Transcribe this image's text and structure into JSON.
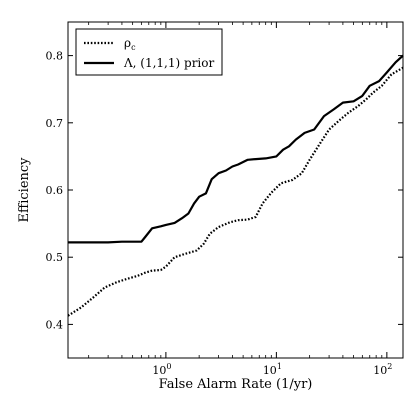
{
  "chart_data": {
    "type": "line",
    "title": "",
    "xlabel": "False Alarm Rate (1/yr)",
    "ylabel": "Efficiency",
    "xscale": "log",
    "xlim": [
      0.13,
      140
    ],
    "ylim": [
      0.35,
      0.85
    ],
    "xticks": [
      {
        "value": 1,
        "label": "10",
        "exp": "0"
      },
      {
        "value": 10,
        "label": "10",
        "exp": "1"
      },
      {
        "value": 100,
        "label": "10",
        "exp": "2"
      }
    ],
    "yticks": [
      {
        "value": 0.4,
        "label": "0.4"
      },
      {
        "value": 0.5,
        "label": "0.5"
      },
      {
        "value": 0.6,
        "label": "0.6"
      },
      {
        "value": 0.7,
        "label": "0.7"
      },
      {
        "value": 0.8,
        "label": "0.8"
      }
    ],
    "grid": false,
    "legend_position": "top-left",
    "series": [
      {
        "name": "ρ_c",
        "label_base": "ρ",
        "label_sub": "c",
        "style": "dotted",
        "color": "#000000",
        "x": [
          0.13,
          0.17,
          0.22,
          0.28,
          0.36,
          0.45,
          0.55,
          0.65,
          0.75,
          0.9,
          1.0,
          1.2,
          1.5,
          1.9,
          2.2,
          2.5,
          3.0,
          3.8,
          4.5,
          5.5,
          6.5,
          7.5,
          9.0,
          11.0,
          14.0,
          17.0,
          20.0,
          25.0,
          30.0,
          38.0,
          45.0,
          55.0,
          65.0,
          75.0,
          90.0,
          110.0,
          140.0
        ],
        "y": [
          0.413,
          0.425,
          0.44,
          0.455,
          0.463,
          0.468,
          0.472,
          0.477,
          0.48,
          0.481,
          0.486,
          0.5,
          0.505,
          0.51,
          0.52,
          0.535,
          0.545,
          0.552,
          0.555,
          0.556,
          0.56,
          0.58,
          0.596,
          0.61,
          0.615,
          0.625,
          0.645,
          0.67,
          0.69,
          0.705,
          0.715,
          0.725,
          0.735,
          0.745,
          0.755,
          0.772,
          0.782
        ]
      },
      {
        "name": "Λ, (1,1,1) prior",
        "label_base": "Λ, (1,1,1) prior",
        "label_sub": "",
        "style": "solid",
        "color": "#000000",
        "x": [
          0.13,
          0.2,
          0.3,
          0.4,
          0.5,
          0.6,
          0.65,
          0.75,
          0.9,
          1.0,
          1.2,
          1.4,
          1.6,
          1.8,
          2.0,
          2.3,
          2.6,
          3.0,
          3.5,
          4.0,
          4.5,
          5.5,
          6.5,
          8.0,
          10.0,
          11.5,
          13.0,
          15.0,
          18.0,
          22.0,
          27.0,
          33.0,
          40.0,
          50.0,
          60.0,
          70.0,
          85.0,
          100.0,
          120.0,
          140.0
        ],
        "y": [
          0.522,
          0.522,
          0.522,
          0.523,
          0.523,
          0.523,
          0.53,
          0.543,
          0.546,
          0.548,
          0.551,
          0.558,
          0.565,
          0.58,
          0.59,
          0.595,
          0.616,
          0.625,
          0.629,
          0.635,
          0.638,
          0.645,
          0.646,
          0.647,
          0.65,
          0.66,
          0.665,
          0.675,
          0.685,
          0.69,
          0.71,
          0.72,
          0.73,
          0.732,
          0.74,
          0.755,
          0.762,
          0.775,
          0.79,
          0.8
        ]
      }
    ]
  }
}
